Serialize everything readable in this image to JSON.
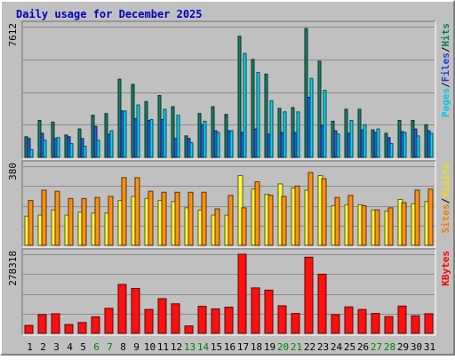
{
  "chart_data": {
    "type": "bar",
    "title": "Daily usage for December 2025",
    "categories": [
      "1",
      "2",
      "3",
      "4",
      "5",
      "6",
      "7",
      "8",
      "9",
      "10",
      "11",
      "12",
      "13",
      "14",
      "15",
      "16",
      "17",
      "18",
      "19",
      "20",
      "21",
      "22",
      "23",
      "24",
      "25",
      "26",
      "27",
      "28",
      "29",
      "30",
      "31"
    ],
    "weekend_days": [
      "6",
      "7",
      "13",
      "14",
      "20",
      "21",
      "27",
      "28"
    ],
    "panels": [
      {
        "name": "pages-files-hits",
        "ymax_label": "7612",
        "ylim": [
          0,
          7612
        ],
        "grid": true,
        "legend": [
          {
            "text": "Pages",
            "color": "#00c8e8"
          },
          {
            "text": "/",
            "color": "#000000"
          },
          {
            "text": "Files",
            "color": "#2040e0"
          },
          {
            "text": "/",
            "color": "#000000"
          },
          {
            "text": "Hits",
            "color": "#008060"
          }
        ],
        "series": [
          {
            "name": "Hits",
            "color": "#15836a",
            "values": [
              1200,
              2150,
              2050,
              1300,
              1650,
              2450,
              2550,
              4550,
              4250,
              3250,
              3600,
              2950,
              1250,
              2550,
              2950,
              2500,
              7050,
              5700,
              4850,
              2850,
              2900,
              7500,
              5600,
              2100,
              2800,
              2800,
              1600,
              1400,
              2150,
              2150,
              1900
            ]
          },
          {
            "name": "Files",
            "color": "#2a5ae8",
            "values": [
              1100,
              1400,
              1100,
              1200,
              1100,
              1800,
              1350,
              2700,
              2250,
              2150,
              2200,
              1100,
              1100,
              1900,
              1550,
              1550,
              1450,
              1650,
              1350,
              1450,
              1450,
              3500,
              1850,
              1550,
              1400,
              1600,
              1450,
              1150,
              1500,
              1650,
              1550
            ]
          },
          {
            "name": "Pages",
            "color": "#00d8f4",
            "values": [
              450,
              1000,
              1150,
              800,
              650,
              1000,
              1550,
              2700,
              3050,
              2200,
              2800,
              2450,
              850,
              2100,
              1450,
              1550,
              6050,
              4950,
              3300,
              2650,
              2650,
              4600,
              3900,
              1350,
              2150,
              1900,
              1650,
              800,
              1450,
              1250,
              1400
            ]
          }
        ]
      },
      {
        "name": "sites-visits",
        "ymax_label": "380",
        "ylim": [
          0,
          380
        ],
        "grid": true,
        "legend": [
          {
            "text": "Sites",
            "color": "#f08000"
          },
          {
            "text": "/",
            "color": "#000000"
          },
          {
            "text": "Visits",
            "color": "#f0e000"
          }
        ],
        "series": [
          {
            "name": "Visits",
            "color": "#ffff40",
            "values": [
              140,
              145,
              170,
              145,
              160,
              155,
              155,
              215,
              235,
              225,
              215,
              210,
              180,
              170,
              145,
              145,
              335,
              270,
              245,
              295,
              275,
              265,
              335,
              190,
              195,
              195,
              170,
              165,
              220,
              200,
              210
            ]
          },
          {
            "name": "Sites",
            "color": "#ff9010",
            "values": [
              215,
              265,
              260,
              225,
              225,
              230,
              235,
              325,
              325,
              260,
              255,
              255,
              255,
              255,
              175,
              240,
              180,
              305,
              240,
              235,
              285,
              350,
              320,
              230,
              240,
              190,
              170,
              180,
              205,
              265,
              270
            ]
          }
        ]
      },
      {
        "name": "kbytes",
        "ymax_label": "278318",
        "ylim": [
          0,
          278318
        ],
        "grid": true,
        "legend": [
          {
            "text": "KBytes",
            "color": "#ff0000"
          }
        ],
        "series": [
          {
            "name": "KBytes",
            "color": "#ff1010",
            "values": [
              28000,
              66000,
              69000,
              31000,
              38000,
              58000,
              88000,
              172000,
              158000,
              84000,
              122000,
              104000,
              26000,
              95000,
              86000,
              92000,
              278318,
              160000,
              152000,
              97000,
              70000,
              268000,
              208000,
              66000,
              93000,
              84000,
              70000,
              59000,
              96000,
              62000,
              69000
            ]
          }
        ]
      }
    ]
  }
}
